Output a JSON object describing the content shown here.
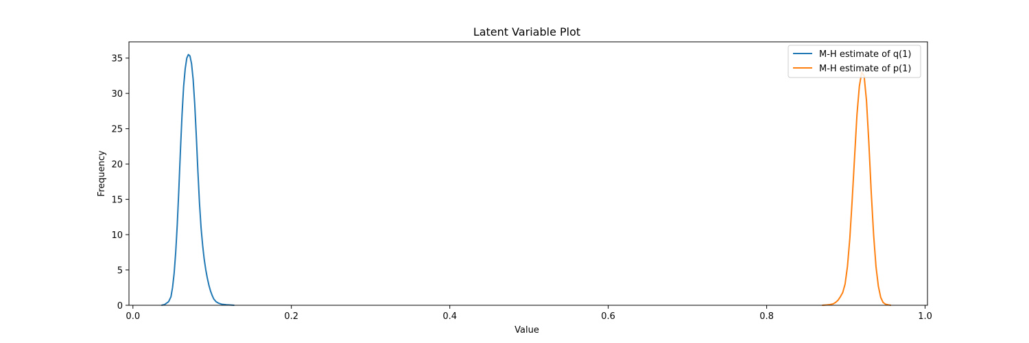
{
  "chart_data": {
    "type": "line",
    "title": "Latent Variable Plot",
    "xlabel": "Value",
    "ylabel": "Frequency",
    "xlim": [
      -0.005,
      1.003
    ],
    "ylim": [
      0,
      37.3
    ],
    "xticks": [
      0.0,
      0.2,
      0.4,
      0.6,
      0.8,
      1.0
    ],
    "xtick_labels": [
      "0.0",
      "0.2",
      "0.4",
      "0.6",
      "0.8",
      "1.0"
    ],
    "yticks": [
      0,
      5,
      10,
      15,
      20,
      25,
      30,
      35
    ],
    "ytick_labels": [
      "0",
      "5",
      "10",
      "15",
      "20",
      "25",
      "30",
      "35"
    ],
    "grid": false,
    "legend_position": "top-right",
    "series": [
      {
        "name": "M-H estimate of q(1)",
        "color": "#1f77b4",
        "points": [
          [
            0.036,
            0.0
          ],
          [
            0.04,
            0.1
          ],
          [
            0.045,
            0.5
          ],
          [
            0.048,
            1.2
          ],
          [
            0.05,
            2.5
          ],
          [
            0.052,
            4.5
          ],
          [
            0.054,
            7.5
          ],
          [
            0.056,
            11.5
          ],
          [
            0.058,
            16.5
          ],
          [
            0.06,
            22.0
          ],
          [
            0.062,
            27.0
          ],
          [
            0.064,
            31.0
          ],
          [
            0.066,
            33.5
          ],
          [
            0.068,
            35.0
          ],
          [
            0.07,
            35.5
          ],
          [
            0.072,
            35.3
          ],
          [
            0.074,
            34.2
          ],
          [
            0.076,
            32.0
          ],
          [
            0.078,
            28.5
          ],
          [
            0.08,
            24.0
          ],
          [
            0.082,
            19.0
          ],
          [
            0.084,
            14.5
          ],
          [
            0.086,
            11.0
          ],
          [
            0.088,
            8.5
          ],
          [
            0.09,
            6.5
          ],
          [
            0.092,
            5.0
          ],
          [
            0.094,
            3.8
          ],
          [
            0.096,
            2.8
          ],
          [
            0.098,
            2.0
          ],
          [
            0.1,
            1.4
          ],
          [
            0.102,
            0.9
          ],
          [
            0.105,
            0.5
          ],
          [
            0.108,
            0.3
          ],
          [
            0.112,
            0.15
          ],
          [
            0.118,
            0.07
          ],
          [
            0.125,
            0.02
          ],
          [
            0.128,
            0.0
          ]
        ]
      },
      {
        "name": "M-H estimate of p(1)",
        "color": "#ff7f0e",
        "points": [
          [
            0.87,
            0.0
          ],
          [
            0.876,
            0.05
          ],
          [
            0.88,
            0.1
          ],
          [
            0.884,
            0.2
          ],
          [
            0.887,
            0.4
          ],
          [
            0.89,
            0.7
          ],
          [
            0.893,
            1.2
          ],
          [
            0.896,
            1.8
          ],
          [
            0.899,
            3.0
          ],
          [
            0.902,
            5.5
          ],
          [
            0.905,
            9.5
          ],
          [
            0.908,
            15.0
          ],
          [
            0.911,
            21.0
          ],
          [
            0.914,
            27.0
          ],
          [
            0.917,
            31.0
          ],
          [
            0.92,
            33.0
          ],
          [
            0.923,
            32.5
          ],
          [
            0.926,
            29.0
          ],
          [
            0.929,
            23.0
          ],
          [
            0.932,
            16.0
          ],
          [
            0.935,
            10.0
          ],
          [
            0.938,
            5.5
          ],
          [
            0.941,
            2.7
          ],
          [
            0.944,
            1.1
          ],
          [
            0.947,
            0.4
          ],
          [
            0.95,
            0.15
          ],
          [
            0.954,
            0.05
          ],
          [
            0.957,
            0.0
          ]
        ]
      }
    ]
  }
}
